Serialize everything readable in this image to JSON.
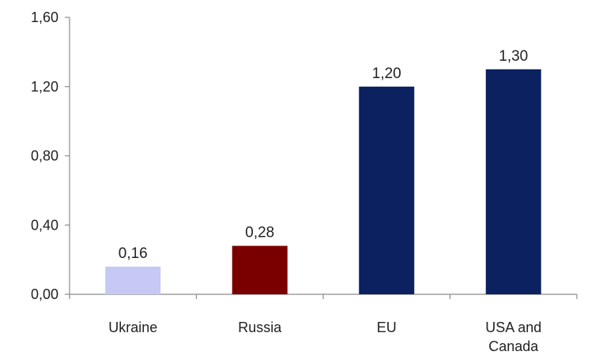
{
  "chart_data": {
    "type": "bar",
    "categories": [
      [
        "Ukraine"
      ],
      [
        "Russia"
      ],
      [
        "EU"
      ],
      [
        "USA and",
        "Canada"
      ]
    ],
    "values": [
      0.16,
      0.28,
      1.2,
      1.3
    ],
    "value_labels": [
      "0,16",
      "0,28",
      "1,20",
      "1,30"
    ],
    "bar_colors": [
      "#c5c9f3",
      "#7a0000",
      "#0b2160",
      "#0b2160"
    ],
    "yticks": [
      0,
      0.4,
      0.8,
      1.2,
      1.6
    ],
    "ytick_labels": [
      "0,00",
      "0,40",
      "0,80",
      "1,20",
      "1,60"
    ],
    "ylim": [
      0,
      1.6
    ],
    "grid": false,
    "legend": "none"
  }
}
